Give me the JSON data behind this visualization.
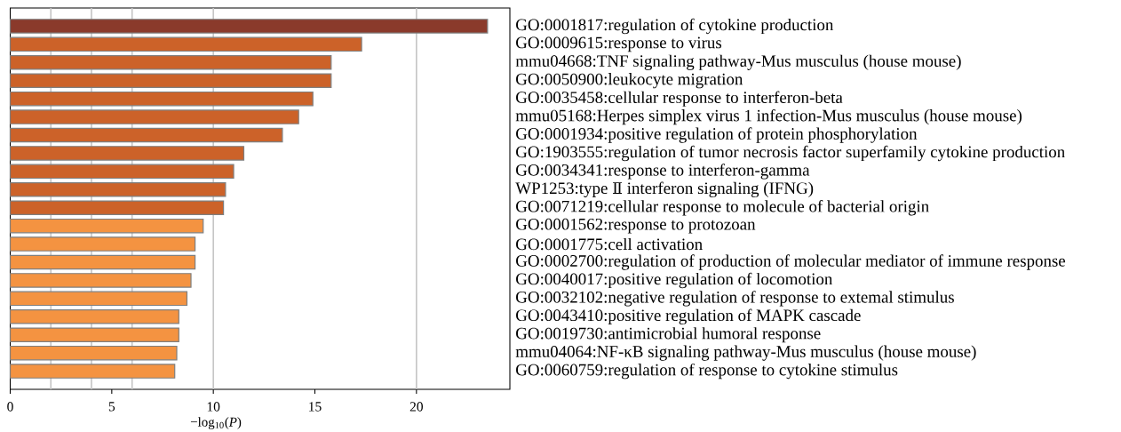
{
  "chart_data": {
    "type": "bar",
    "orientation": "horizontal",
    "categories": [
      "GO:0001817:regulation of cytokine production",
      "GO:0009615:response to virus",
      "mmu04668:TNF signaling pathway-Mus musculus (house mouse)",
      "GO:0050900:leukocyte migration",
      "GO:0035458:cellular response to interferon-beta",
      "mmu05168:Herpes simplex virus 1 infection-Mus musculus (house mouse)",
      "GO:0001934:positive regulation of protein phosphorylation",
      "GO:1903555:regulation of tumor necrosis factor superfamily cytokine production",
      "GO:0034341:response to interferon-gamma",
      "WP1253:type Ⅱ interferon signaling (IFNG)",
      "GO:0071219:cellular response to molecule of bacterial origin",
      "GO:0001562:response to protozoan",
      "GO:0001775:cell activation",
      "GO:0002700:regulation of production of molecular mediator of immune response",
      "GO:0040017:positive regulation of locomotion",
      "GO:0032102:negative regulation of response to extemal stimulus",
      "GO:0043410:positive regulation of MAPK cascade",
      "GO:0019730:antimicrobial humoral response",
      "mmu04064:NF-κB signaling pathway-Mus musculus (house mouse)",
      "GO:0060759:regulation of response to cytokine stimulus"
    ],
    "values": [
      23.5,
      17.3,
      15.8,
      15.8,
      14.9,
      14.2,
      13.4,
      11.5,
      11.0,
      10.6,
      10.5,
      9.5,
      9.1,
      9.1,
      8.9,
      8.7,
      8.3,
      8.3,
      8.2,
      8.1
    ],
    "colors": [
      "#8a3a2b",
      "#cc6229",
      "#cc6229",
      "#cc6229",
      "#cc6229",
      "#cc6229",
      "#cc6229",
      "#cc6229",
      "#cc6229",
      "#cc6229",
      "#cc6229",
      "#f49341",
      "#f49341",
      "#f49341",
      "#f49341",
      "#f49341",
      "#f49341",
      "#f49341",
      "#f49341",
      "#f49341"
    ],
    "xlim": [
      0,
      24.6
    ],
    "xticks": [
      0,
      5,
      10,
      15,
      20
    ],
    "xlabel": "−log$_{10}$(*P*)",
    "ref_lines": [
      {
        "axis": "x",
        "value": 2,
        "color": "#c4c4c4"
      },
      {
        "axis": "x",
        "value": 4,
        "color": "#c4c4c4"
      },
      {
        "axis": "x",
        "value": 6,
        "color": "#c4c4c4"
      },
      {
        "axis": "x",
        "value": 10,
        "color": "#c4c4c4"
      },
      {
        "axis": "x",
        "value": 20,
        "color": "#c4c4c4"
      }
    ]
  }
}
